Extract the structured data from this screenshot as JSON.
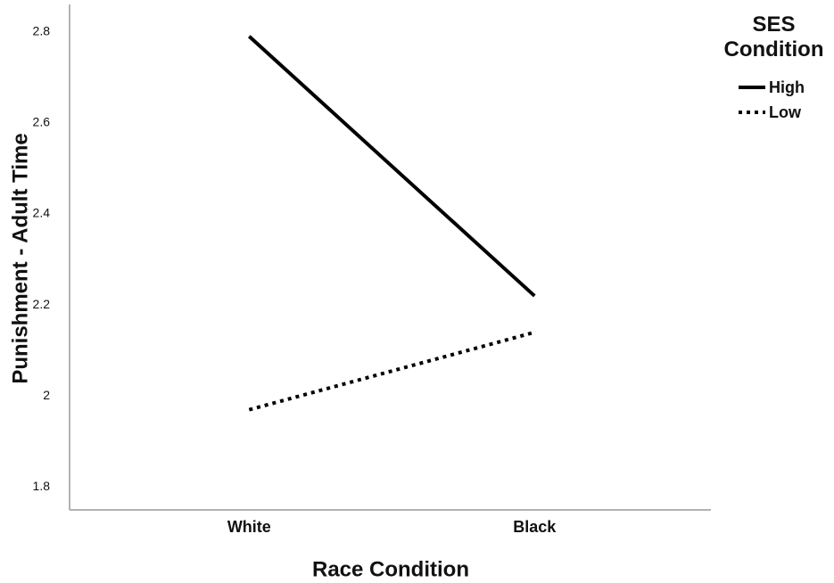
{
  "chart_data": {
    "type": "line",
    "x_label": "Race Condition",
    "y_label": "Punishment - Adult Time",
    "legend_title": "SES Condition",
    "categories": [
      "White",
      "Black"
    ],
    "series": [
      {
        "name": "High",
        "color": "#000000",
        "style": "solid",
        "values": [
          2.79,
          2.22
        ]
      },
      {
        "name": "Low",
        "color": "#000000",
        "style": "dotted",
        "values": [
          1.97,
          2.14
        ]
      }
    ],
    "ylim": [
      1.75,
      2.86
    ],
    "yticks": [
      1.8,
      2.0,
      2.2,
      2.4,
      2.6,
      2.8
    ],
    "grid": false,
    "legend": "right"
  }
}
